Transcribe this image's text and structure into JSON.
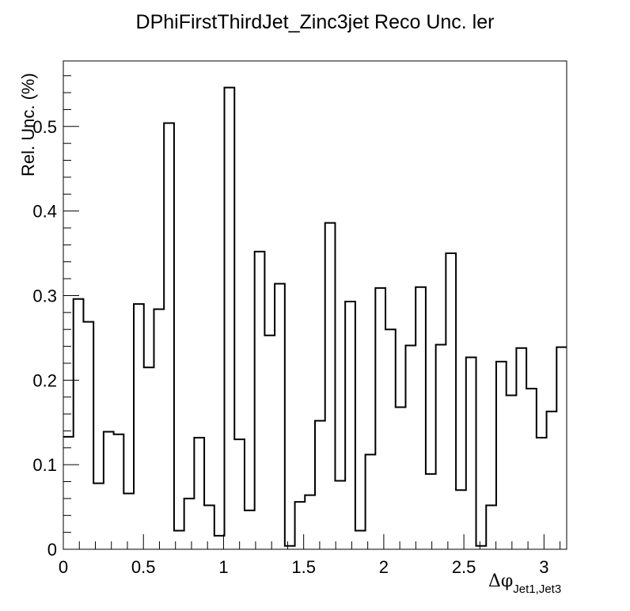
{
  "chart_data": {
    "type": "histogram-step",
    "title": "DPhiFirstThirdJet_Zinc3jet Reco Unc. ler",
    "xlabel_main": "Δφ",
    "xlabel_sub": "Jet1,Jet3",
    "ylabel": "Rel. Unc. (%)",
    "xlim": [
      0,
      3.1416
    ],
    "ylim": [
      0,
      0.5775
    ],
    "x_ticks": [
      0,
      0.5,
      1,
      1.5,
      2,
      2.5,
      3
    ],
    "x_tick_labels": [
      "0",
      "0.5",
      "1",
      "1.5",
      "2",
      "2.5",
      "3"
    ],
    "y_ticks": [
      0,
      0.1,
      0.2,
      0.3,
      0.4,
      0.5
    ],
    "y_tick_labels": [
      "0",
      "0.1",
      "0.2",
      "0.3",
      "0.4",
      "0.5"
    ],
    "grid": false,
    "line_color": "#000000",
    "n_bins": 50,
    "values": [
      0.133,
      0.296,
      0.269,
      0.078,
      0.139,
      0.136,
      0.066,
      0.29,
      0.215,
      0.284,
      0.504,
      0.022,
      0.06,
      0.132,
      0.052,
      0.016,
      0.546,
      0.13,
      0.046,
      0.352,
      0.253,
      0.314,
      0.004,
      0.056,
      0.064,
      0.152,
      0.386,
      0.081,
      0.293,
      0.022,
      0.112,
      0.309,
      0.26,
      0.168,
      0.241,
      0.31,
      0.089,
      0.242,
      0.35,
      0.07,
      0.227,
      0.004,
      0.052,
      0.222,
      0.182,
      0.238,
      0.19,
      0.132,
      0.163,
      0.239
    ]
  }
}
